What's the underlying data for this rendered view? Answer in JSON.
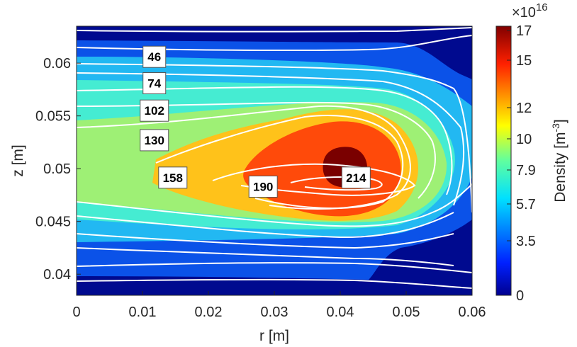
{
  "chart_data": {
    "type": "heatmap",
    "title": "",
    "xlabel": "r [m]",
    "ylabel": "z [m]",
    "xlim": [
      0,
      0.06
    ],
    "ylim": [
      0.038,
      0.0635
    ],
    "x_ticks": [
      "0",
      "0.01",
      "0.02",
      "0.03",
      "0.04",
      "0.05",
      "0.06"
    ],
    "y_ticks": [
      "0.04",
      "0.045",
      "0.05",
      "0.055",
      "0.06"
    ],
    "colorbar": {
      "label": "Density [m",
      "label_exponent": "-3",
      "label_close": "]",
      "multiplier_base": "×10",
      "multiplier_exponent": "16",
      "tick_labels": [
        "0",
        "3.5",
        "5.7",
        "7.9",
        "10",
        "12",
        "15",
        "17"
      ],
      "range": [
        0,
        17
      ]
    },
    "density_fill_levels": [
      {
        "range": "0–2.5",
        "color": "#000a8f"
      },
      {
        "range": "2.5–4.5",
        "color": "#0b52e8"
      },
      {
        "range": "4.5–6.5",
        "color": "#22b8f2"
      },
      {
        "range": "6.5–8.5",
        "color": "#45ecd2"
      },
      {
        "range": "8.5–10.5",
        "color": "#9ef075"
      },
      {
        "range": "10.5–12.5",
        "color": "#ffc21a"
      },
      {
        "range": "12.5–15",
        "color": "#ff4a0a"
      },
      {
        "range": "15–17",
        "color": "#7a0000"
      }
    ],
    "contour_labels": [
      {
        "value": "46",
        "r": 0.0118,
        "z": 0.0606
      },
      {
        "value": "74",
        "r": 0.0118,
        "z": 0.0581
      },
      {
        "value": "102",
        "r": 0.0118,
        "z": 0.0555
      },
      {
        "value": "130",
        "r": 0.0118,
        "z": 0.0527
      },
      {
        "value": "158",
        "r": 0.0146,
        "z": 0.04915
      },
      {
        "value": "190",
        "r": 0.0283,
        "z": 0.0483
      },
      {
        "value": "214",
        "r": 0.0424,
        "z": 0.04915
      }
    ]
  }
}
